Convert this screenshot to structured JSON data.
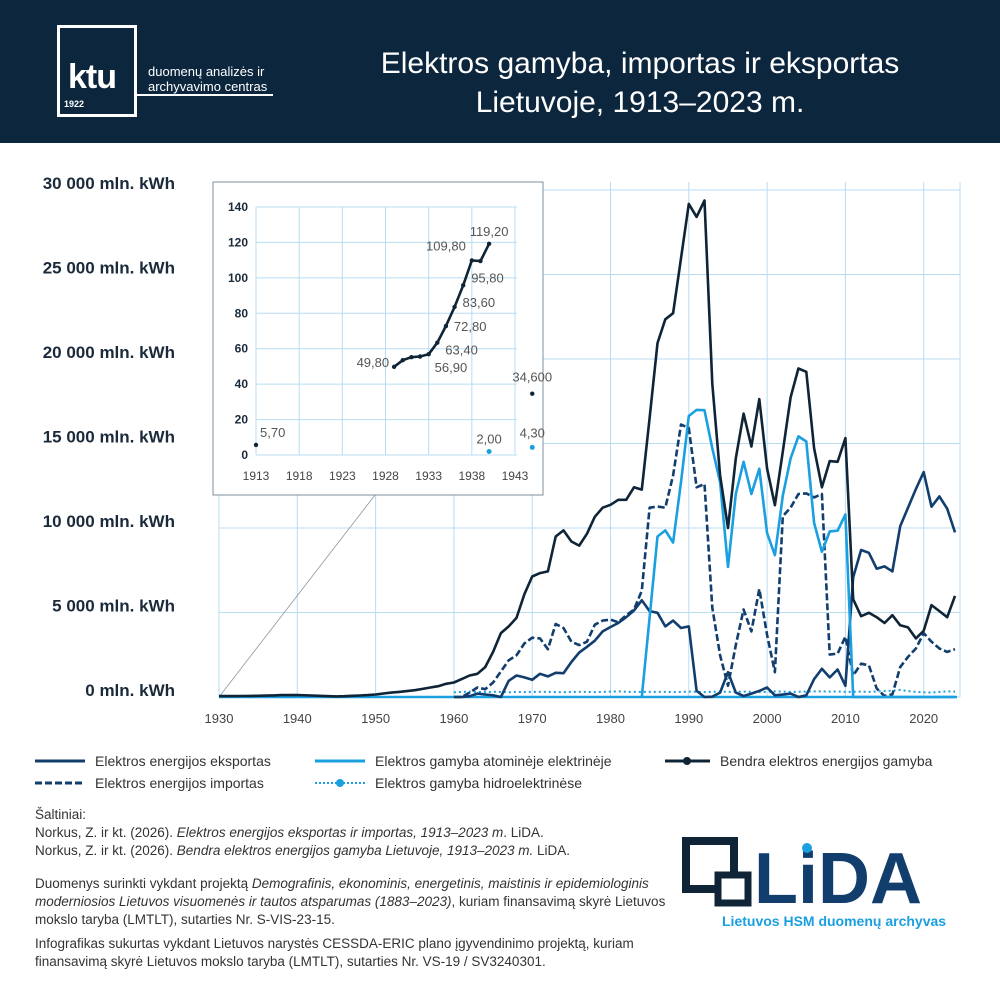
{
  "header": {
    "logo_word": "ktu",
    "logo_year": "1922",
    "logo_line1": "duomenų analizės ir",
    "logo_line2": "archyvavimo centras",
    "title_line1": "Elektros gamyba, importas ir eksportas",
    "title_line2": "Lietuvoje, 1913–2023 m.",
    "background": "#0c263d"
  },
  "chart_data": [
    {
      "type": "line",
      "title": "",
      "xlabel": "",
      "ylabel": "",
      "xlim": [
        1930,
        2024
      ],
      "ylim": [
        0,
        30000
      ],
      "grid": true,
      "x_ticks": [
        "1930",
        "1940",
        "1950",
        "1960",
        "1970",
        "1980",
        "1990",
        "2000",
        "2010",
        "2020"
      ],
      "y_ticks": [
        "0 mln. kWh",
        "5 000 mln. kWh",
        "10 000 mln. kWh",
        "15 000 mln. kWh",
        "20 000 mln. kWh",
        "25 000 mln. kWh",
        "30 000 mln. kWh"
      ],
      "legend_position": "bottom",
      "series": [
        {
          "name": "Elektros energijos eksportas",
          "style": "solid",
          "color": "#123e6e",
          "start_year": 1960,
          "values": [
            0,
            0,
            50,
            200,
            150,
            100,
            0,
            960,
            1270,
            1160,
            1020,
            1370,
            1220,
            1430,
            1410,
            2070,
            2630,
            2970,
            3330,
            3880,
            4140,
            4380,
            4720,
            5120,
            5720,
            5080,
            4980,
            4180,
            4520,
            4080,
            4180,
            360,
            0,
            20,
            260,
            1470,
            260,
            60,
            200,
            360,
            560,
            100,
            140,
            200,
            0,
            100,
            1060,
            1670,
            1160,
            1630,
            660,
            7090,
            8700,
            8530,
            7590,
            7730,
            7430,
            10100,
            11200,
            12310,
            13310,
            11260,
            11870,
            11140,
            9740
          ]
        },
        {
          "name": "Elektros energijos importas",
          "style": "dashed",
          "color": "#123e6e",
          "start_year": 1960,
          "values": [
            0,
            0,
            260,
            560,
            460,
            860,
            1510,
            2170,
            2470,
            3170,
            3510,
            3470,
            2830,
            4320,
            4080,
            3270,
            3070,
            3270,
            4280,
            4520,
            4580,
            4420,
            4840,
            5180,
            6290,
            11200,
            11270,
            11200,
            13110,
            16120,
            15920,
            12410,
            12610,
            5280,
            2470,
            660,
            3070,
            5180,
            3880,
            6390,
            3670,
            1470,
            10700,
            11200,
            12010,
            12050,
            11810,
            12010,
            2510,
            2570,
            3570,
            1270,
            1970,
            1870,
            500,
            60,
            160,
            1770,
            2370,
            2870,
            3780,
            3270,
            2870,
            2670,
            2830
          ]
        },
        {
          "name": "Elektros gamyba atominėje elektrinėje",
          "style": "solid",
          "color": "#1a9fe0",
          "start_year": 1984,
          "values": [
            0,
            4700,
            9500,
            9860,
            9140,
            12710,
            16630,
            16990,
            16970,
            14720,
            12710,
            7690,
            12010,
            13920,
            12010,
            13510,
            9700,
            8390,
            11910,
            14120,
            15420,
            15120,
            10300,
            8590,
            9800,
            9840,
            10800,
            0,
            0,
            0,
            0,
            0,
            0,
            0,
            0,
            0,
            0,
            0,
            0,
            0,
            0
          ]
        },
        {
          "name": "Elektros gamyba hidroelektrinėse",
          "style": "dotted",
          "color": "#1a9fe0",
          "start_year": 1960,
          "values": [
            280,
            300,
            320,
            300,
            290,
            310,
            300,
            280,
            300,
            290,
            300,
            310,
            300,
            290,
            280,
            300,
            310,
            300,
            290,
            300,
            320,
            330,
            310,
            300,
            300,
            300,
            310,
            300,
            290,
            300,
            320,
            300,
            290,
            310,
            330,
            300,
            310,
            320,
            300,
            290,
            300,
            330,
            320,
            300,
            310,
            320,
            330,
            340,
            320,
            330,
            300,
            310,
            320,
            300,
            330,
            350,
            380,
            420,
            350,
            300,
            280,
            260,
            300,
            330,
            320
          ]
        },
        {
          "name": "Bendra elektros energijos gamyba",
          "style": "solid-marker",
          "color": "#0f2436",
          "start_year": 1930,
          "values": [
            53.5,
            55.2,
            55.6,
            56.9,
            63.4,
            72.8,
            83.6,
            95.8,
            109.8,
            109.5,
            119.2,
            null,
            null,
            null,
            null,
            34.6,
            50,
            70,
            90,
            110,
            150,
            210,
            260,
            300,
            350,
            400,
            480,
            560,
            640,
            780,
            860,
            1060,
            1270,
            1370,
            1770,
            2670,
            3780,
            4180,
            4680,
            6080,
            7130,
            7330,
            7430,
            9500,
            9860,
            9200,
            8960,
            9660,
            10660,
            11200,
            11370,
            11670,
            11670,
            12410,
            12270,
            16500,
            20940,
            22350,
            22710,
            25960,
            29180,
            28410,
            29380,
            18530,
            13110,
            10000,
            14120,
            16770,
            14820,
            17630,
            13510,
            11350,
            14520,
            17730,
            19440,
            19240,
            14720,
            12410,
            13960,
            13920,
            15320,
            5780,
            4780,
            4980,
            4720,
            4380,
            4840,
            4240,
            4120,
            3470,
            3920,
            5440,
            5080,
            4720,
            5980
          ]
        }
      ]
    },
    {
      "type": "line",
      "title": "",
      "xlim": [
        1913,
        1945
      ],
      "ylim": [
        0,
        140
      ],
      "grid": true,
      "x_ticks": [
        "1913",
        "1918",
        "1923",
        "1928",
        "1933",
        "1938",
        "1943"
      ],
      "y_ticks": [
        "0",
        "20",
        "40",
        "60",
        "80",
        "100",
        "120",
        "140"
      ],
      "series": [
        {
          "name": "Bendra elektros energijos gamyba",
          "color": "#0f2436",
          "segments": [
            [
              [
                1913,
                5.7
              ]
            ],
            [
              [
                1929,
                49.8
              ],
              [
                1930,
                53.5
              ],
              [
                1931,
                55.2
              ],
              [
                1932,
                55.6
              ],
              [
                1933,
                56.9
              ],
              [
                1934,
                63.4
              ],
              [
                1935,
                72.8
              ],
              [
                1936,
                83.6
              ],
              [
                1937,
                95.8
              ],
              [
                1938,
                109.8
              ],
              [
                1939,
                109.5
              ],
              [
                1940,
                119.2
              ]
            ],
            [
              [
                1945,
                34.6
              ]
            ]
          ]
        },
        {
          "name": "Elektros gamyba hidroelektrinėse",
          "color": "#1a9fe0",
          "segments": [
            [
              [
                1940,
                2.0
              ]
            ],
            [
              [
                1945,
                4.3
              ]
            ]
          ]
        }
      ],
      "data_labels": [
        {
          "text": "5,70",
          "x": 1913,
          "y": 5.7
        },
        {
          "text": "49,80",
          "x": 1929,
          "y": 49.8
        },
        {
          "text": "56,90",
          "x": 1933,
          "y": 56.9
        },
        {
          "text": "63,40",
          "x": 1934,
          "y": 63.4
        },
        {
          "text": "72,80",
          "x": 1935,
          "y": 72.8
        },
        {
          "text": "83,60",
          "x": 1936,
          "y": 83.6
        },
        {
          "text": "95,80",
          "x": 1937,
          "y": 95.8
        },
        {
          "text": "109,80",
          "x": 1938,
          "y": 109.8
        },
        {
          "text": "119,20",
          "x": 1940,
          "y": 119.2
        },
        {
          "text": "34,600",
          "x": 1945,
          "y": 34.6
        },
        {
          "text": "2,00",
          "x": 1940,
          "y": 2.0
        },
        {
          "text": "4,30",
          "x": 1945,
          "y": 4.3
        }
      ]
    }
  ],
  "legend": [
    {
      "label": "Elektros energijos eksportas"
    },
    {
      "label": "Elektros gamyba atominėje elektrinėje"
    },
    {
      "label": "Bendra elektros energijos gamyba"
    },
    {
      "label": "Elektros energijos importas"
    },
    {
      "label": "Elektros gamyba hidroelektrinėse"
    }
  ],
  "sources": {
    "heading": "Šaltiniai:",
    "ref1_prefix": "Norkus, Z. ir kt. (2026). ",
    "ref1_title": "Elektros energijos eksportas ir importas, 1913–2023 m",
    "ref1_suffix": ". LiDA.",
    "ref2_prefix": "Norkus, Z. ir kt. (2026). ",
    "ref2_title": "Bendra elektros energijos gamyba Lietuvoje, 1913–2023 m.",
    "ref2_suffix": " LiDA.",
    "p1_prefix": "Duomenys surinkti vykdant projektą ",
    "p1_title": "Demografinis, ekonominis, energetinis, maistinis ir epidemiologinis moderniosios Lietuvos visuomenės ir tautos atsparumas (1883–2023)",
    "p1_suffix": ", kuriam finansavimą skyrė Lietuvos mokslo taryba (LMTLT), sutarties Nr. S-VIS-23-15.",
    "p2": "Infografikas sukurtas vykdant Lietuvos narystės CESSDA-ERIC plano įgyvendinimo projektą, kuriam finansavimą skyrė Lietuvos mokslo taryba (LMTLT), sutarties Nr. VS-19 / SV3240301."
  },
  "lida_logo": {
    "word": "LiDA",
    "subtitle": "Lietuvos HSM duomenų archyvas",
    "color": "#123e6e",
    "accent": "#1a9fe0"
  }
}
